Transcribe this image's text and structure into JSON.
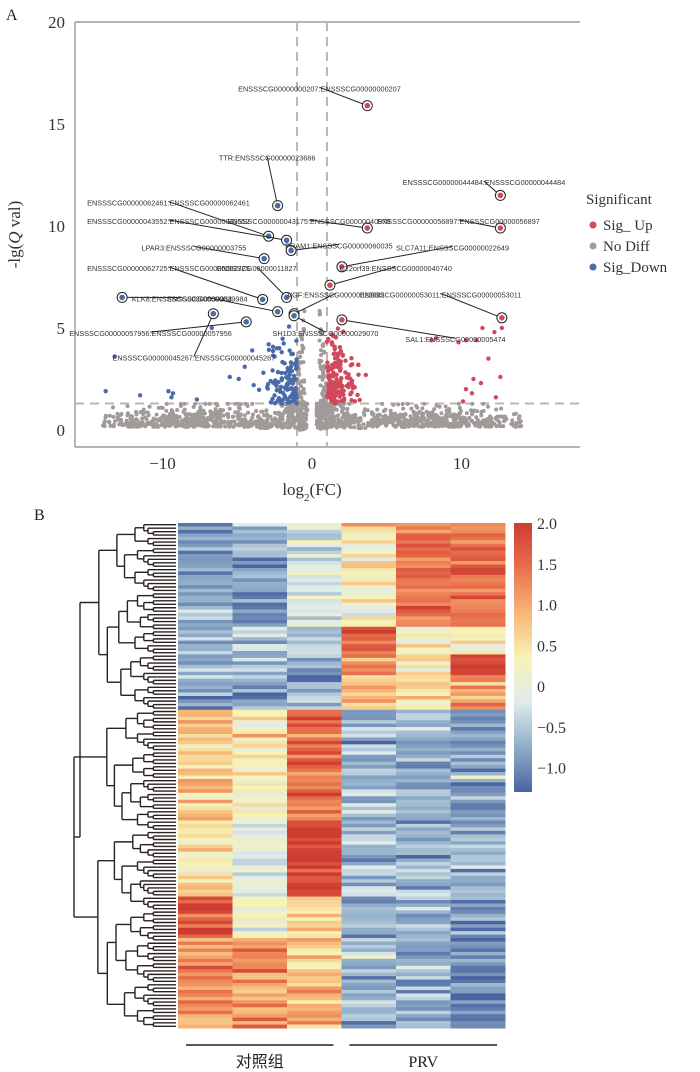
{
  "chart_data": [
    {
      "panel": "A",
      "type": "scatter",
      "title": "",
      "xlabel": "log2(FC)",
      "ylabel": "-lg(Q val)",
      "xlim": [
        -16,
        17
      ],
      "ylim": [
        -1,
        20
      ],
      "xticks": [
        -10,
        0,
        10
      ],
      "xtick_labels": [
        "−10",
        "0",
        "10"
      ],
      "yticks": [
        0,
        5,
        10,
        15,
        20
      ],
      "ytick_labels": [
        "0",
        "5",
        "10",
        "15",
        "20"
      ],
      "thresholds": {
        "log2fc": [
          -1,
          1
        ],
        "neg_lg_q": 1.3
      },
      "legend": {
        "title": "Significant",
        "position": "right",
        "entries": [
          {
            "name": "Sig_ Up",
            "color": "#d1495b"
          },
          {
            "name": "No Diff",
            "color": "#a09a98"
          },
          {
            "name": "Sig_Down",
            "color": "#4a6aa8"
          }
        ]
      },
      "highlighted_genes": [
        {
          "label": "ENSSSCG00000000207:ENSSSCG00000000207",
          "x": 3.7,
          "y": 15.9,
          "group": "up",
          "lx": 0.5,
          "ly": 16.7,
          "anchor": "middle"
        },
        {
          "label": "TTR:ENSSSCG00000023686",
          "x": -2.3,
          "y": 11.0,
          "group": "down",
          "lx": -3.0,
          "ly": 13.3,
          "anchor": "middle"
        },
        {
          "label": "ENSSSCG00000044484:ENSSSCG00000044484",
          "x": 12.6,
          "y": 11.5,
          "group": "up",
          "lx": 11.5,
          "ly": 12.1,
          "anchor": "middle"
        },
        {
          "label": "ENSSSCG00000062461:ENSSSCG00000062461",
          "x": -2.9,
          "y": 9.5,
          "group": "down",
          "lx": -9.6,
          "ly": 11.1,
          "anchor": "middle"
        },
        {
          "label": "ENSSSCG00000043175:ENSSSCG00000040978",
          "x": 3.7,
          "y": 9.9,
          "group": "up",
          "lx": -0.2,
          "ly": 10.2,
          "anchor": "middle"
        },
        {
          "label": "ENSSSCG00000056897:ENSSSCG00000056897",
          "x": 12.6,
          "y": 9.9,
          "group": "up",
          "lx": 9.8,
          "ly": 10.2,
          "anchor": "middle"
        },
        {
          "label": "ENSSSCG00000043552:ENSSSCG00000043552",
          "x": -1.7,
          "y": 9.3,
          "group": "down",
          "lx": -9.6,
          "ly": 10.2,
          "anchor": "middle"
        },
        {
          "label": "PRAM1:ENSSSCG00000060035",
          "x": -1.4,
          "y": 8.8,
          "group": "down",
          "lx": 1.8,
          "ly": 9.0,
          "anchor": "middle"
        },
        {
          "label": "LPAR3:ENSSSCG00000003755",
          "x": -3.2,
          "y": 8.4,
          "group": "down",
          "lx": -7.9,
          "ly": 8.9,
          "anchor": "middle"
        },
        {
          "label": "SLC7A11:ENSSSCG00000022649",
          "x": 2.0,
          "y": 8.0,
          "group": "up",
          "lx": 9.4,
          "ly": 8.9,
          "anchor": "middle"
        },
        {
          "label": "ENSSSCG00000062725:ENSSSCG00000062725",
          "x": -3.3,
          "y": 6.4,
          "group": "down",
          "lx": -9.6,
          "ly": 7.9,
          "anchor": "middle"
        },
        {
          "label": "ENSSSCG00000011827",
          "x": -1.7,
          "y": 6.5,
          "group": "down",
          "lx": -3.7,
          "ly": 7.9,
          "anchor": "middle"
        },
        {
          "label": "C22orf39:ENSSSCG00000040740",
          "x": 1.2,
          "y": 7.1,
          "group": "up",
          "lx": 5.6,
          "ly": 7.9,
          "anchor": "middle"
        },
        {
          "label": "KLK8:ENSSSCG00000039964",
          "x": -12.7,
          "y": 6.5,
          "group": "down",
          "lx": -8.7,
          "ly": 6.4,
          "anchor": "middle"
        },
        {
          "label": "VGF:ENSSSCG00000029882",
          "x": -1.2,
          "y": 5.7,
          "group": "down",
          "lx": 1.6,
          "ly": 6.6,
          "anchor": "middle"
        },
        {
          "label": "ENSSSCG00000053011:ENSSSCG00000053011",
          "x": 12.7,
          "y": 5.5,
          "group": "up",
          "lx": 8.6,
          "ly": 6.6,
          "anchor": "middle"
        },
        {
          "label": "ENSSSCG00000057956:ENSSSCG00000057956",
          "x": -4.4,
          "y": 5.3,
          "group": "down",
          "lx": -10.8,
          "ly": 4.7,
          "anchor": "middle"
        },
        {
          "label": "SH1D3:ENSSSCG00000029070",
          "x": -1.2,
          "y": 5.6,
          "group": "down",
          "lx": 0.9,
          "ly": 4.7,
          "anchor": "middle"
        },
        {
          "label": "SAL1:ENSSSCG00000005474",
          "x": 2.0,
          "y": 5.4,
          "group": "up",
          "lx": 9.6,
          "ly": 4.4,
          "anchor": "middle"
        },
        {
          "label": "ENSSSCG00000045267:ENSSSCG00000045267",
          "x": -6.6,
          "y": 5.7,
          "group": "down",
          "lx": -7.9,
          "ly": 3.5,
          "anchor": "middle"
        },
        {
          "label": "ENSSSCG00000039984",
          "x": -2.3,
          "y": 5.8,
          "group": "down",
          "lx": -7.0,
          "ly": 6.4,
          "anchor": "middle"
        }
      ]
    },
    {
      "panel": "B",
      "type": "heatmap",
      "title": "",
      "groups": [
        {
          "label": "对照组",
          "columns": 3
        },
        {
          "label": "PRV",
          "columns": 3
        }
      ],
      "colorbar": {
        "range": [
          -1.3,
          2.0
        ],
        "ticks": [
          2.0,
          1.5,
          1.0,
          0.5,
          0,
          -0.5,
          -1.0
        ],
        "tick_labels": [
          "2.0",
          "1.5",
          "1.0",
          "0.5",
          "0",
          "−0.5",
          "−1.0"
        ],
        "colors": [
          "#4a64a0",
          "#8fadc9",
          "#dfebec",
          "#f7f3b5",
          "#f7b676",
          "#e9704d",
          "#cd3b30"
        ]
      },
      "row_clusters": [
        {
          "rows": 30,
          "means": [
            -0.8,
            -0.8,
            -0.3,
            0.3,
            1.3,
            1.4
          ]
        },
        {
          "rows": 8,
          "means": [
            -0.7,
            -0.5,
            -0.5,
            1.7,
            0.3,
            0.2
          ]
        },
        {
          "rows": 6,
          "means": [
            -0.8,
            -0.6,
            -0.8,
            1.2,
            0.4,
            1.9
          ]
        },
        {
          "rows": 10,
          "means": [
            -0.9,
            -0.7,
            -0.8,
            1.0,
            0.5,
            1.2
          ]
        },
        {
          "rows": 32,
          "means": [
            0.8,
            0.3,
            1.5,
            -0.6,
            -0.7,
            -0.9
          ]
        },
        {
          "rows": 22,
          "means": [
            0.4,
            0.0,
            1.9,
            -0.6,
            -0.7,
            -0.6
          ]
        },
        {
          "rows": 12,
          "means": [
            1.8,
            0.2,
            0.6,
            -0.7,
            -0.6,
            -0.8
          ]
        },
        {
          "rows": 26,
          "means": [
            1.2,
            1.2,
            0.8,
            -0.6,
            -0.8,
            -1.0
          ]
        }
      ]
    }
  ]
}
